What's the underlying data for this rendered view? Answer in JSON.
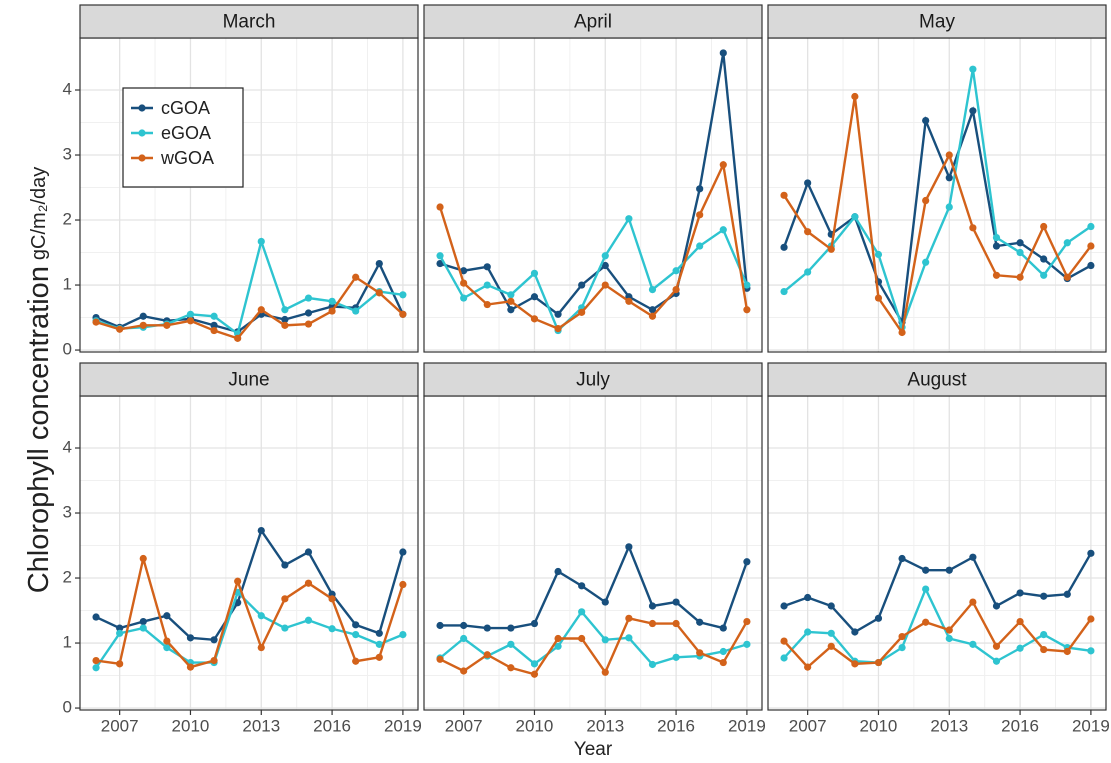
{
  "x_label": "Year",
  "y_label": "Chlorophyll concentration",
  "y_unit": "gC/m₂/day",
  "chart_data": [
    {
      "type": "line",
      "title": "March",
      "legend": "upper left",
      "grid": true,
      "x": [
        2006,
        2007,
        2008,
        2009,
        2010,
        2011,
        2012,
        2013,
        2014,
        2015,
        2016,
        2017,
        2018,
        2019
      ],
      "xlim": [
        2005.32,
        2019.64
      ],
      "xticks": [
        2007,
        2010,
        2013,
        2016,
        2019
      ],
      "ylim": [
        -0.03,
        4.8
      ],
      "yticks": [
        0,
        1,
        2,
        3,
        4
      ],
      "series": [
        {
          "name": "cGOA",
          "color": "#184f7d",
          "values": [
            0.5,
            0.35,
            0.52,
            0.45,
            0.48,
            0.38,
            0.28,
            0.55,
            0.47,
            0.57,
            0.67,
            0.65,
            1.33,
            0.55
          ]
        },
        {
          "name": "eGOA",
          "color": "#2ec4d0",
          "values": [
            0.45,
            0.33,
            0.35,
            0.4,
            0.55,
            0.52,
            0.25,
            1.67,
            0.62,
            0.8,
            0.75,
            0.6,
            0.9,
            0.85
          ]
        },
        {
          "name": "wGOA",
          "color": "#d3621a",
          "values": [
            0.43,
            0.32,
            0.38,
            0.38,
            0.45,
            0.3,
            0.18,
            0.62,
            0.38,
            0.4,
            0.6,
            1.12,
            0.88,
            0.55
          ]
        }
      ]
    },
    {
      "type": "line",
      "title": "April",
      "grid": true,
      "x": [
        2006,
        2007,
        2008,
        2009,
        2010,
        2011,
        2012,
        2013,
        2014,
        2015,
        2016,
        2017,
        2018,
        2019
      ],
      "xlim": [
        2005.32,
        2019.64
      ],
      "xticks": [
        2007,
        2010,
        2013,
        2016,
        2019
      ],
      "ylim": [
        -0.03,
        4.8
      ],
      "yticks": [
        0,
        1,
        2,
        3,
        4
      ],
      "series": [
        {
          "name": "cGOA",
          "color": "#184f7d",
          "values": [
            1.33,
            1.22,
            1.28,
            0.62,
            0.82,
            0.55,
            1.0,
            1.3,
            0.82,
            0.62,
            0.87,
            2.48,
            4.57,
            0.95
          ]
        },
        {
          "name": "eGOA",
          "color": "#2ec4d0",
          "values": [
            1.45,
            0.8,
            1.0,
            0.85,
            1.18,
            0.3,
            0.65,
            1.45,
            2.02,
            0.93,
            1.22,
            1.6,
            1.85,
            1.0
          ]
        },
        {
          "name": "wGOA",
          "color": "#d3621a",
          "values": [
            2.2,
            1.03,
            0.7,
            0.75,
            0.48,
            0.33,
            0.58,
            1.0,
            0.75,
            0.52,
            0.93,
            2.08,
            2.85,
            0.62
          ]
        }
      ]
    },
    {
      "type": "line",
      "title": "May",
      "grid": true,
      "x": [
        2006,
        2007,
        2008,
        2009,
        2010,
        2011,
        2012,
        2013,
        2014,
        2015,
        2016,
        2017,
        2018,
        2019
      ],
      "xlim": [
        2005.32,
        2019.64
      ],
      "xticks": [
        2007,
        2010,
        2013,
        2016,
        2019
      ],
      "ylim": [
        -0.03,
        4.8
      ],
      "yticks": [
        0,
        1,
        2,
        3,
        4
      ],
      "series": [
        {
          "name": "cGOA",
          "color": "#184f7d",
          "values": [
            1.58,
            2.57,
            1.78,
            2.05,
            1.05,
            0.43,
            3.53,
            2.65,
            3.68,
            1.6,
            1.65,
            1.4,
            1.1,
            1.3
          ]
        },
        {
          "name": "eGOA",
          "color": "#2ec4d0",
          "values": [
            0.9,
            1.2,
            1.6,
            2.05,
            1.47,
            0.35,
            1.35,
            2.2,
            4.32,
            1.73,
            1.5,
            1.15,
            1.65,
            1.9
          ]
        },
        {
          "name": "wGOA",
          "color": "#d3621a",
          "values": [
            2.38,
            1.82,
            1.55,
            3.9,
            0.8,
            0.27,
            2.3,
            3.0,
            1.88,
            1.15,
            1.12,
            1.9,
            1.12,
            1.6
          ]
        }
      ]
    },
    {
      "type": "line",
      "title": "June",
      "grid": true,
      "x": [
        2006,
        2007,
        2008,
        2009,
        2010,
        2011,
        2012,
        2013,
        2014,
        2015,
        2016,
        2017,
        2018,
        2019
      ],
      "xlim": [
        2005.32,
        2019.64
      ],
      "xticks": [
        2007,
        2010,
        2013,
        2016,
        2019
      ],
      "ylim": [
        -0.03,
        4.8
      ],
      "yticks": [
        0,
        1,
        2,
        3,
        4
      ],
      "series": [
        {
          "name": "cGOA",
          "color": "#184f7d",
          "values": [
            1.4,
            1.23,
            1.33,
            1.42,
            1.08,
            1.05,
            1.62,
            2.73,
            2.2,
            2.4,
            1.75,
            1.28,
            1.15,
            2.4
          ]
        },
        {
          "name": "eGOA",
          "color": "#2ec4d0",
          "values": [
            0.62,
            1.15,
            1.23,
            0.93,
            0.7,
            0.7,
            1.78,
            1.42,
            1.23,
            1.35,
            1.22,
            1.13,
            0.98,
            1.13
          ]
        },
        {
          "name": "wGOA",
          "color": "#d3621a",
          "values": [
            0.73,
            0.68,
            2.3,
            1.03,
            0.63,
            0.73,
            1.95,
            0.93,
            1.68,
            1.92,
            1.68,
            0.72,
            0.78,
            1.9
          ]
        }
      ]
    },
    {
      "type": "line",
      "title": "July",
      "grid": true,
      "x": [
        2006,
        2007,
        2008,
        2009,
        2010,
        2011,
        2012,
        2013,
        2014,
        2015,
        2016,
        2017,
        2018,
        2019
      ],
      "xlim": [
        2005.32,
        2019.64
      ],
      "xticks": [
        2007,
        2010,
        2013,
        2016,
        2019
      ],
      "ylim": [
        -0.03,
        4.8
      ],
      "yticks": [
        0,
        1,
        2,
        3,
        4
      ],
      "series": [
        {
          "name": "cGOA",
          "color": "#184f7d",
          "values": [
            1.27,
            1.27,
            1.23,
            1.23,
            1.3,
            2.1,
            1.88,
            1.63,
            2.48,
            1.57,
            1.63,
            1.32,
            1.23,
            2.25
          ]
        },
        {
          "name": "eGOA",
          "color": "#2ec4d0",
          "values": [
            0.77,
            1.07,
            0.8,
            0.98,
            0.68,
            0.95,
            1.48,
            1.05,
            1.08,
            0.67,
            0.78,
            0.8,
            0.87,
            0.98
          ]
        },
        {
          "name": "wGOA",
          "color": "#d3621a",
          "values": [
            0.75,
            0.57,
            0.82,
            0.62,
            0.52,
            1.07,
            1.07,
            0.55,
            1.38,
            1.3,
            1.3,
            0.85,
            0.7,
            1.33
          ]
        }
      ]
    },
    {
      "type": "line",
      "title": "August",
      "grid": true,
      "x": [
        2006,
        2007,
        2008,
        2009,
        2010,
        2011,
        2012,
        2013,
        2014,
        2015,
        2016,
        2017,
        2018,
        2019
      ],
      "xlim": [
        2005.32,
        2019.64
      ],
      "xticks": [
        2007,
        2010,
        2013,
        2016,
        2019
      ],
      "ylim": [
        -0.03,
        4.8
      ],
      "yticks": [
        0,
        1,
        2,
        3,
        4
      ],
      "series": [
        {
          "name": "cGOA",
          "color": "#184f7d",
          "values": [
            1.57,
            1.7,
            1.57,
            1.17,
            1.38,
            2.3,
            2.12,
            2.12,
            2.32,
            1.57,
            1.77,
            1.72,
            1.75,
            2.38
          ]
        },
        {
          "name": "eGOA",
          "color": "#2ec4d0",
          "values": [
            0.77,
            1.17,
            1.15,
            0.72,
            0.7,
            0.93,
            1.83,
            1.07,
            0.98,
            0.72,
            0.92,
            1.13,
            0.93,
            0.88
          ]
        },
        {
          "name": "wGOA",
          "color": "#d3621a",
          "values": [
            1.03,
            0.63,
            0.95,
            0.68,
            0.7,
            1.1,
            1.32,
            1.2,
            1.63,
            0.95,
            1.33,
            0.9,
            0.87,
            1.37
          ]
        }
      ]
    }
  ]
}
